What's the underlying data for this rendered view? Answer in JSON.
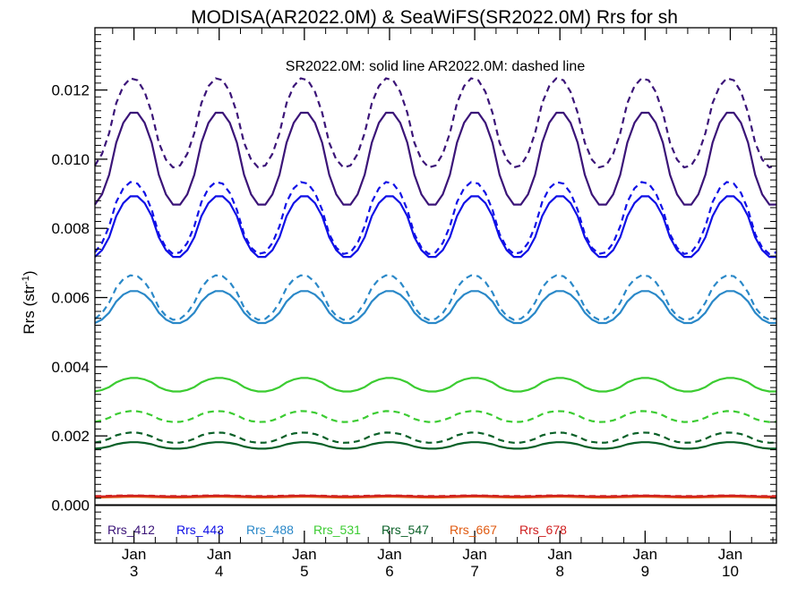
{
  "chart_data": {
    "type": "line",
    "title": "MODISA(AR2022.0M) & SeaWiFS(SR2022.0M)  Rrs for sh",
    "subtitle": "SR2022.0M: solid line   AR2022.0M: dashed line",
    "ylabel": "Rrs (str",
    "ylabel_sup": "-1",
    "ylabel_close": ")",
    "xlabel": "",
    "xlim": [
      0,
      96
    ],
    "ylim": [
      -0.0011,
      0.0138
    ],
    "yticks": [
      0.0,
      0.002,
      0.004,
      0.006,
      0.008,
      0.01,
      0.012
    ],
    "ytick_labels": [
      "0.000",
      "0.002",
      "0.004",
      "0.006",
      "0.008",
      "0.010",
      "0.012"
    ],
    "xticks": [
      {
        "x": 5.5,
        "line1": "Jan",
        "line2": "3"
      },
      {
        "x": 17.5,
        "line1": "Jan",
        "line2": "4"
      },
      {
        "x": 29.5,
        "line1": "Jan",
        "line2": "5"
      },
      {
        "x": 41.5,
        "line1": "Jan",
        "line2": "6"
      },
      {
        "x": 53.5,
        "line1": "Jan",
        "line2": "7"
      },
      {
        "x": 65.5,
        "line1": "Jan",
        "line2": "8"
      },
      {
        "x": 77.5,
        "line1": "Jan",
        "line2": "9"
      },
      {
        "x": 89.5,
        "line1": "Jan",
        "line2": "10"
      }
    ],
    "zero_line": true,
    "legend_position": "bottom-left",
    "series": [
      {
        "name": "Rrs_412",
        "color": "#3b1478",
        "solid": {
          "max": 0.01138,
          "min": 0.00865,
          "peak_x": 5.5
        },
        "dashed": {
          "max": 0.01235,
          "min": 0.00975,
          "peak_x": 5.3
        }
      },
      {
        "name": "Rrs_443",
        "color": "#1010e6",
        "solid": {
          "max": 0.00895,
          "min": 0.00715,
          "peak_x": 5.5
        },
        "dashed": {
          "max": 0.00935,
          "min": 0.00725,
          "peak_x": 5.3
        }
      },
      {
        "name": "Rrs_488",
        "color": "#2a88c8",
        "solid": {
          "max": 0.0062,
          "min": 0.00525,
          "peak_x": 5.5
        },
        "dashed": {
          "max": 0.00665,
          "min": 0.00535,
          "peak_x": 5.3
        }
      },
      {
        "name": "Rrs_531",
        "color": "#3ccc32",
        "solid": {
          "max": 0.00368,
          "min": 0.00328,
          "peak_x": 5.5
        },
        "dashed": {
          "max": 0.00272,
          "min": 0.0024,
          "peak_x": 5.3
        }
      },
      {
        "name": "Rrs_547",
        "color": "#0a6028",
        "solid": {
          "max": 0.00182,
          "min": 0.00163,
          "peak_x": 5.5
        },
        "dashed": {
          "max": 0.0021,
          "min": 0.0018,
          "peak_x": 5.3
        }
      },
      {
        "name": "Rrs_667",
        "color": "#e05a10",
        "solid": {
          "max": 0.00024,
          "min": 0.00022,
          "peak_x": 5.5
        },
        "dashed": {
          "max": 0.00025,
          "min": 0.00023,
          "peak_x": 5.3
        }
      },
      {
        "name": "Rrs_678",
        "color": "#d02020",
        "solid": {
          "max": 0.00027,
          "min": 0.00025,
          "peak_x": 5.5
        },
        "dashed": {
          "max": 0.00028,
          "min": 0.00026,
          "peak_x": 5.3
        }
      }
    ]
  }
}
